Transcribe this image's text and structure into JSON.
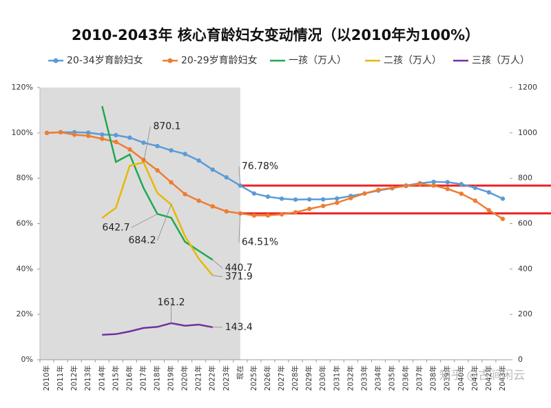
{
  "chart_data": {
    "type": "line",
    "title": "2010-2043年 核心育龄妇女变动情况（以2010年为100%）",
    "watermark": "知乎 @古涧闲云",
    "categories": [
      "2010年",
      "2011年",
      "2012年",
      "2013年",
      "2014年",
      "2015年",
      "2016年",
      "2017年",
      "2018年",
      "2019年",
      "2020年",
      "2021年",
      "2022年",
      "2023年",
      "现在",
      "2025年",
      "2026年",
      "2027年",
      "2028年",
      "2029年",
      "2030年",
      "2031年",
      "2032年",
      "2033年",
      "2034年",
      "2035年",
      "2036年",
      "2037年",
      "2038年",
      "2039年",
      "2040年",
      "2041年",
      "2042年",
      "2043年"
    ],
    "ylim": [
      0,
      120
    ],
    "yticks": [
      {
        "value": 0,
        "label": "0%"
      },
      {
        "value": 20,
        "label": "20%"
      },
      {
        "value": 40,
        "label": "40%"
      },
      {
        "value": 60,
        "label": "60%"
      },
      {
        "value": 80,
        "label": "80%"
      },
      {
        "value": 100,
        "label": "100%"
      },
      {
        "value": 120,
        "label": "120%"
      }
    ],
    "y2lim": [
      0,
      1200
    ],
    "y2ticks": [
      0,
      200,
      400,
      600,
      800,
      1000,
      1200
    ],
    "series": [
      {
        "name": "20-34岁育龄妇女",
        "color": "#5b9bd5",
        "markers": true,
        "values": [
          100,
          100.3,
          100.3,
          100.1,
          99.3,
          99.0,
          97.9,
          95.7,
          94.2,
          92.3,
          90.7,
          87.8,
          83.8,
          80.4,
          76.78,
          73.3,
          71.9,
          71.0,
          70.6,
          70.7,
          70.7,
          71.1,
          72.2,
          73.3,
          74.6,
          75.6,
          76.8,
          77.8,
          78.4,
          78.3,
          77.4,
          75.8,
          73.8,
          71.0
        ],
        "value_labels": [
          null,
          null,
          null,
          null,
          null,
          null,
          null,
          null,
          null,
          null,
          null,
          null,
          null,
          null,
          "76.78%",
          null,
          null,
          null,
          null,
          null,
          null,
          null,
          null,
          null,
          null,
          null,
          null,
          null,
          null,
          null,
          null,
          null,
          null,
          null
        ]
      },
      {
        "name": "20-29岁育龄妇女",
        "color": "#ed7d31",
        "markers": true,
        "values": [
          100,
          100.3,
          99.2,
          98.7,
          97.4,
          96.0,
          92.7,
          88.1,
          83.5,
          78.2,
          73.0,
          70.1,
          67.6,
          65.4,
          64.51,
          63.6,
          63.6,
          64.1,
          65.0,
          66.5,
          67.8,
          69.2,
          71.3,
          73.3,
          74.9,
          75.8,
          76.6,
          77.5,
          76.8,
          75.3,
          73.2,
          70.1,
          65.9,
          62.1
        ],
        "value_labels": [
          null,
          null,
          null,
          null,
          null,
          null,
          null,
          null,
          null,
          null,
          null,
          null,
          null,
          null,
          "64.51%",
          null,
          null,
          null,
          null,
          null,
          null,
          null,
          null,
          null,
          null,
          null,
          null,
          null,
          null,
          null,
          null,
          null,
          null,
          null
        ]
      },
      {
        "name": "一孩（万人）",
        "color": "#1fa84f",
        "axis": "y2",
        "markers": false,
        "values": [
          null,
          null,
          null,
          null,
          1118,
          872,
          905,
          757,
          642.7,
          626,
          520,
          480,
          440.7,
          null,
          null,
          null,
          null,
          null,
          null,
          null,
          null,
          null,
          null,
          null,
          null,
          null,
          null,
          null,
          null,
          null,
          null,
          null,
          null,
          null
        ],
        "value_labels": [
          null,
          null,
          null,
          null,
          null,
          null,
          null,
          null,
          "642.7",
          null,
          null,
          null,
          "440.7",
          null,
          null,
          null,
          null,
          null,
          null,
          null,
          null,
          null,
          null,
          null,
          null,
          null,
          null,
          null,
          null,
          null,
          null,
          null,
          null,
          null
        ]
      },
      {
        "name": "二孩（万人）",
        "color": "#e6b800",
        "axis": "y2",
        "markers": false,
        "values": [
          null,
          null,
          null,
          null,
          625,
          670,
          855,
          870.1,
          735,
          684.2,
          545,
          445,
          371.9,
          null,
          null,
          null,
          null,
          null,
          null,
          null,
          null,
          null,
          null,
          null,
          null,
          null,
          null,
          null,
          null,
          null,
          null,
          null,
          null,
          null
        ],
        "value_labels": [
          null,
          null,
          null,
          null,
          null,
          null,
          null,
          "870.1",
          null,
          "684.2",
          null,
          null,
          "371.9",
          null,
          null,
          null,
          null,
          null,
          null,
          null,
          null,
          null,
          null,
          null,
          null,
          null,
          null,
          null,
          null,
          null,
          null,
          null,
          null,
          null
        ]
      },
      {
        "name": "三孩（万人）",
        "color": "#7030a0",
        "axis": "y2",
        "markers": false,
        "values": [
          null,
          null,
          null,
          null,
          110,
          113,
          125,
          140,
          145,
          161.2,
          150,
          155,
          143.4,
          null,
          null,
          null,
          null,
          null,
          null,
          null,
          null,
          null,
          null,
          null,
          null,
          null,
          null,
          null,
          null,
          null,
          null,
          null,
          null,
          null
        ],
        "value_labels": [
          null,
          null,
          null,
          null,
          null,
          null,
          null,
          null,
          null,
          "161.2",
          null,
          null,
          "143.4",
          null,
          null,
          null,
          null,
          null,
          null,
          null,
          null,
          null,
          null,
          null,
          null,
          null,
          null,
          null,
          null,
          null,
          null,
          null,
          null,
          null
        ]
      }
    ],
    "reference_color": "#ee2222"
  }
}
